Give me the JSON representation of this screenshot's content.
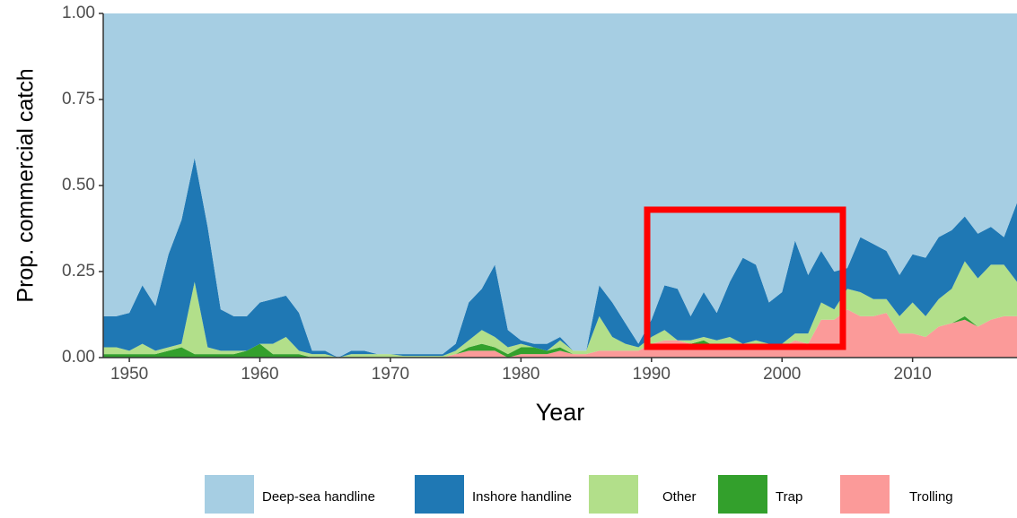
{
  "chart_data": {
    "type": "stacked_area",
    "xlabel": "Year",
    "ylabel": "Prop. commercial catch",
    "x": [
      1948,
      1949,
      1950,
      1951,
      1952,
      1953,
      1954,
      1955,
      1956,
      1957,
      1958,
      1959,
      1960,
      1961,
      1962,
      1963,
      1964,
      1965,
      1966,
      1967,
      1968,
      1969,
      1970,
      1971,
      1972,
      1973,
      1974,
      1975,
      1976,
      1977,
      1978,
      1979,
      1980,
      1981,
      1982,
      1983,
      1984,
      1985,
      1986,
      1987,
      1988,
      1989,
      1990,
      1991,
      1992,
      1993,
      1994,
      1995,
      1996,
      1997,
      1998,
      1999,
      2000,
      2001,
      2002,
      2003,
      2004,
      2005,
      2006,
      2007,
      2008,
      2009,
      2010,
      2011,
      2012,
      2013,
      2014,
      2015,
      2016,
      2017,
      2018
    ],
    "xlim": [
      1948,
      2018
    ],
    "xticks": [
      1950,
      1960,
      1970,
      1980,
      1990,
      2000,
      2010
    ],
    "ylim": [
      0,
      1
    ],
    "yticks": [
      {
        "value": 0,
        "label": "0.00"
      },
      {
        "value": 0.25,
        "label": "0.25"
      },
      {
        "value": 0.5,
        "label": "0.50"
      },
      {
        "value": 0.75,
        "label": "0.75"
      },
      {
        "value": 1,
        "label": "1.00"
      }
    ],
    "legend": "bottom",
    "series": [
      {
        "name": "Deep-sea handline",
        "color": "#a6cee3",
        "values": [
          0.88,
          0.88,
          0.87,
          0.79,
          0.85,
          0.7,
          0.6,
          0.42,
          0.62,
          0.86,
          0.88,
          0.88,
          0.84,
          0.83,
          0.82,
          0.87,
          0.98,
          0.98,
          1,
          0.98,
          0.98,
          0.99,
          0.99,
          0.99,
          0.99,
          0.99,
          0.99,
          0.96,
          0.84,
          0.8,
          0.73,
          0.92,
          0.95,
          0.96,
          0.96,
          0.94,
          0.98,
          0.98,
          0.79,
          0.84,
          0.9,
          0.96,
          0.89,
          0.79,
          0.8,
          0.88,
          0.81,
          0.87,
          0.78,
          0.71,
          0.73,
          0.84,
          0.81,
          0.66,
          0.76,
          0.69,
          0.75,
          0.74,
          0.65,
          0.67,
          0.69,
          0.76,
          0.7,
          0.71,
          0.65,
          0.63,
          0.59,
          0.64,
          0.62,
          0.65,
          0.55
        ]
      },
      {
        "name": "Inshore handline",
        "color": "#1f78b4",
        "values": [
          0.09,
          0.09,
          0.11,
          0.17,
          0.13,
          0.27,
          0.36,
          0.36,
          0.35,
          0.12,
          0.1,
          0.1,
          0.12,
          0.13,
          0.12,
          0.11,
          0.01,
          0.01,
          0,
          0.01,
          0.01,
          0,
          0,
          0.005,
          0.005,
          0.005,
          0.005,
          0.02,
          0.11,
          0.12,
          0.21,
          0.05,
          0.01,
          0.01,
          0.02,
          0.01,
          0,
          0,
          0.09,
          0.1,
          0.06,
          0.01,
          0.05,
          0.13,
          0.15,
          0.07,
          0.13,
          0.08,
          0.16,
          0.25,
          0.22,
          0.12,
          0.15,
          0.27,
          0.17,
          0.15,
          0.11,
          0.06,
          0.16,
          0.16,
          0.14,
          0.12,
          0.14,
          0.17,
          0.18,
          0.17,
          0.13,
          0.13,
          0.11,
          0.08,
          0.23
        ]
      },
      {
        "name": "Other",
        "color": "#b2df8a",
        "values": [
          0.02,
          0.02,
          0.01,
          0.03,
          0.01,
          0.01,
          0.01,
          0.21,
          0.02,
          0.01,
          0.01,
          0,
          0,
          0.03,
          0.05,
          0.01,
          0.01,
          0.01,
          0,
          0.01,
          0.01,
          0.01,
          0.01,
          0.005,
          0.005,
          0.005,
          0.005,
          0.01,
          0.02,
          0.04,
          0.03,
          0.02,
          0.01,
          0,
          0,
          0.02,
          0.01,
          0.01,
          0.1,
          0.04,
          0.02,
          0.01,
          0.02,
          0.03,
          0,
          0.01,
          0.01,
          0.02,
          0.02,
          0.01,
          0.01,
          0.01,
          0.01,
          0.02,
          0.03,
          0.05,
          0.03,
          0.06,
          0.07,
          0.05,
          0.04,
          0.05,
          0.09,
          0.06,
          0.08,
          0.1,
          0.16,
          0.14,
          0.16,
          0.15,
          0.1
        ]
      },
      {
        "name": "Trap",
        "color": "#33a02c",
        "values": [
          0.01,
          0.01,
          0.01,
          0.01,
          0.01,
          0.02,
          0.03,
          0.01,
          0.01,
          0.01,
          0.01,
          0.02,
          0.04,
          0.01,
          0.01,
          0.01,
          0,
          0,
          0,
          0,
          0,
          0,
          0,
          0,
          0,
          0,
          0,
          0,
          0.01,
          0.02,
          0.01,
          0.01,
          0.02,
          0.02,
          0.01,
          0.01,
          0,
          0,
          0,
          0,
          0,
          0,
          0,
          0,
          0,
          0,
          0.01,
          0,
          0,
          0,
          0.01,
          0,
          0,
          0,
          0,
          0,
          0,
          0,
          0,
          0,
          0,
          0,
          0,
          0,
          0,
          0,
          0.01,
          0,
          0,
          0,
          0
        ]
      },
      {
        "name": "Trolling",
        "color": "#fb9a99",
        "values": [
          0,
          0,
          0,
          0,
          0,
          0,
          0,
          0,
          0,
          0,
          0,
          0,
          0,
          0,
          0,
          0,
          0,
          0,
          0,
          0,
          0,
          0,
          0,
          0,
          0,
          0,
          0,
          0.01,
          0.02,
          0.02,
          0.02,
          0,
          0.01,
          0.01,
          0.01,
          0.02,
          0.01,
          0.01,
          0.02,
          0.02,
          0.02,
          0.02,
          0.04,
          0.05,
          0.05,
          0.04,
          0.04,
          0.03,
          0.04,
          0.03,
          0.03,
          0.03,
          0.03,
          0.05,
          0.04,
          0.11,
          0.11,
          0.14,
          0.12,
          0.12,
          0.13,
          0.07,
          0.07,
          0.06,
          0.09,
          0.1,
          0.11,
          0.09,
          0.11,
          0.12,
          0.12
        ]
      }
    ]
  }
}
